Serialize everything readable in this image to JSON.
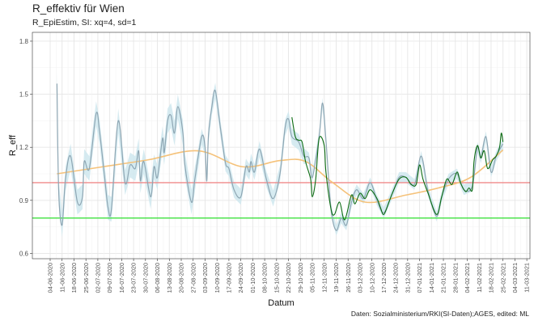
{
  "chart_data": {
    "type": "line",
    "title": "R_effektiv für Wien",
    "subtitle": "R_EpiEstim, SI: xq=4, sd=1",
    "xlabel": "Datum",
    "ylabel": "R_eff",
    "caption": "Daten: Sozialministerium/RKI(SI-Daten);AGES, edited: ML",
    "ylim": [
      0.57,
      1.85
    ],
    "yticks": [
      "0.6",
      "0.9",
      "1.2",
      "1.5",
      "1.8"
    ],
    "xticks": [
      "04-06-2020",
      "11-06-2020",
      "18-06-2020",
      "25-06-2020",
      "02-07-2020",
      "09-07-2020",
      "16-07-2020",
      "23-07-2020",
      "30-07-2020",
      "06-08-2020",
      "13-08-2020",
      "20-08-2020",
      "27-08-2020",
      "03-09-2020",
      "10-09-2020",
      "17-09-2020",
      "24-09-2020",
      "01-10-2020",
      "08-10-2020",
      "15-10-2020",
      "22-10-2020",
      "29-10-2020",
      "05-11-2020",
      "12-11-2020",
      "19-11-2020",
      "26-11-2020",
      "03-12-2020",
      "10-12-2020",
      "17-12-2020",
      "24-12-2020",
      "31-12-2020",
      "07-01-2021",
      "14-01-2021",
      "21-01-2021",
      "28-01-2021",
      "04-02-2021",
      "11-02-2021",
      "18-02-2021",
      "25-02-2021",
      "04-03-2021",
      "11-03-2021"
    ],
    "grid": true,
    "reference_lines": [
      {
        "y": 1.0,
        "color": "#f08a8a"
      },
      {
        "y": 0.8,
        "color": "#3fe23f"
      }
    ],
    "colors": {
      "grey_series": "#8ea6b3",
      "ribbon": "#cfe7ef",
      "green_series": "#0b6b12",
      "smooth": "#f5c27a"
    },
    "ci_band": [
      {
        "from": "2020-06-04",
        "to": "2020-08-31",
        "halfwidth": 0.07
      },
      {
        "from": "2020-09-01",
        "to": "2020-10-31",
        "halfwidth": 0.045
      },
      {
        "from": "2020-11-01",
        "to": "2021-03-11",
        "halfwidth": 0.03
      }
    ],
    "series": [
      {
        "points": [
          [
            "2020-06-08",
            1.56
          ],
          [
            "2020-06-09",
            0.95
          ],
          [
            "2020-06-11",
            0.76
          ],
          [
            "2020-06-13",
            1.02
          ],
          [
            "2020-06-16",
            1.15
          ],
          [
            "2020-06-20",
            0.89
          ],
          [
            "2020-06-23",
            0.92
          ],
          [
            "2020-06-24",
            1.12
          ],
          [
            "2020-06-27",
            1.08
          ],
          [
            "2020-07-01",
            1.39
          ],
          [
            "2020-07-03",
            1.29
          ],
          [
            "2020-07-06",
            1.03
          ],
          [
            "2020-07-08",
            0.86
          ],
          [
            "2020-07-10",
            0.85
          ],
          [
            "2020-07-14",
            1.35
          ],
          [
            "2020-07-18",
            1.0
          ],
          [
            "2020-07-21",
            1.1
          ],
          [
            "2020-07-24",
            1.08
          ],
          [
            "2020-07-26",
            1.18
          ],
          [
            "2020-07-27",
            1.01
          ],
          [
            "2020-07-29",
            1.12
          ],
          [
            "2020-08-02",
            0.92
          ],
          [
            "2020-08-04",
            1.09
          ],
          [
            "2020-08-06",
            1.03
          ],
          [
            "2020-08-09",
            1.25
          ],
          [
            "2020-08-10",
            1.17
          ],
          [
            "2020-08-12",
            1.35
          ],
          [
            "2020-08-14",
            1.38
          ],
          [
            "2020-08-16",
            1.28
          ],
          [
            "2020-08-18",
            1.43
          ],
          [
            "2020-08-21",
            1.28
          ],
          [
            "2020-08-22",
            1.11
          ],
          [
            "2020-08-26",
            0.89
          ],
          [
            "2020-08-28",
            1.02
          ],
          [
            "2020-09-01",
            1.26
          ],
          [
            "2020-09-03",
            1.2
          ],
          [
            "2020-09-04",
            1.01
          ],
          [
            "2020-09-05",
            1.27
          ],
          [
            "2020-09-07",
            1.43
          ],
          [
            "2020-09-09",
            1.52
          ],
          [
            "2020-09-12",
            1.31
          ],
          [
            "2020-09-15",
            1.11
          ],
          [
            "2020-09-17",
            1.08
          ],
          [
            "2020-09-20",
            0.96
          ],
          [
            "2020-09-24",
            0.92
          ],
          [
            "2020-09-27",
            1.09
          ],
          [
            "2020-09-29",
            1.06
          ],
          [
            "2020-09-30",
            1.12
          ],
          [
            "2020-10-02",
            1.06
          ],
          [
            "2020-10-05",
            1.19
          ],
          [
            "2020-10-09",
            1.02
          ],
          [
            "2020-10-13",
            0.91
          ],
          [
            "2020-10-17",
            1.05
          ],
          [
            "2020-10-20",
            1.31
          ],
          [
            "2020-10-22",
            1.36
          ],
          [
            "2020-10-24",
            1.26
          ],
          [
            "2020-10-28",
            1.23
          ],
          [
            "2020-10-31",
            1.15
          ],
          [
            "2020-11-03",
            1.14
          ],
          [
            "2020-11-05",
            1.03
          ],
          [
            "2020-11-09",
            1.26
          ],
          [
            "2020-11-11",
            1.45
          ],
          [
            "2020-11-13",
            1.24
          ],
          [
            "2020-11-16",
            0.85
          ],
          [
            "2020-11-19",
            0.73
          ],
          [
            "2020-11-22",
            0.8
          ],
          [
            "2020-11-25",
            0.76
          ],
          [
            "2020-11-28",
            0.89
          ],
          [
            "2020-12-01",
            0.96
          ],
          [
            "2020-12-05",
            0.91
          ],
          [
            "2020-12-09",
            1.0
          ],
          [
            "2020-12-13",
            0.9
          ],
          [
            "2020-12-17",
            0.83
          ],
          [
            "2020-12-22",
            0.94
          ],
          [
            "2020-12-26",
            1.03
          ],
          [
            "2020-12-30",
            1.03
          ],
          [
            "2021-01-04",
            0.99
          ],
          [
            "2021-01-08",
            1.15
          ],
          [
            "2021-01-12",
            0.95
          ],
          [
            "2021-01-17",
            0.81
          ],
          [
            "2021-01-20",
            0.92
          ],
          [
            "2021-01-24",
            1.02
          ],
          [
            "2021-01-29",
            1.05
          ],
          [
            "2021-02-02",
            0.96
          ],
          [
            "2021-02-07",
            0.98
          ],
          [
            "2021-02-10",
            1.2
          ],
          [
            "2021-02-12",
            1.14
          ],
          [
            "2021-02-15",
            1.26
          ],
          [
            "2021-02-18",
            1.06
          ],
          [
            "2021-02-21",
            1.15
          ],
          [
            "2021-02-25",
            1.22
          ]
        ]
      },
      {
        "points": [
          [
            "2020-10-24",
            1.37
          ],
          [
            "2020-10-26",
            1.26
          ],
          [
            "2020-10-28",
            1.24
          ],
          [
            "2020-10-30",
            1.23
          ],
          [
            "2020-11-01",
            1.12
          ],
          [
            "2020-11-04",
            1.02
          ],
          [
            "2020-11-05",
            0.92
          ],
          [
            "2020-11-07",
            1.02
          ],
          [
            "2020-11-09",
            1.25
          ],
          [
            "2020-11-12",
            1.21
          ],
          [
            "2020-11-13",
            1.06
          ],
          [
            "2020-11-16",
            0.85
          ],
          [
            "2020-11-18",
            0.82
          ],
          [
            "2020-11-21",
            0.89
          ],
          [
            "2020-11-24",
            0.79
          ],
          [
            "2020-11-28",
            0.93
          ],
          [
            "2020-11-30",
            0.88
          ],
          [
            "2020-12-03",
            0.94
          ],
          [
            "2020-12-06",
            0.91
          ],
          [
            "2020-12-09",
            0.96
          ],
          [
            "2020-12-13",
            0.91
          ],
          [
            "2020-12-15",
            0.86
          ],
          [
            "2020-12-17",
            0.82
          ],
          [
            "2020-12-20",
            0.89
          ],
          [
            "2020-12-22",
            0.94
          ],
          [
            "2020-12-26",
            1.02
          ],
          [
            "2020-12-30",
            1.03
          ],
          [
            "2021-01-02",
            0.99
          ],
          [
            "2021-01-05",
            0.99
          ],
          [
            "2021-01-07",
            1.1
          ],
          [
            "2021-01-09",
            1.02
          ],
          [
            "2021-01-12",
            0.94
          ],
          [
            "2021-01-17",
            0.82
          ],
          [
            "2021-01-20",
            0.92
          ],
          [
            "2021-01-23",
            1.02
          ],
          [
            "2021-01-26",
            0.99
          ],
          [
            "2021-01-29",
            1.06
          ],
          [
            "2021-01-31",
            1.0
          ],
          [
            "2021-02-03",
            0.95
          ],
          [
            "2021-02-05",
            0.97
          ],
          [
            "2021-02-07",
            0.96
          ],
          [
            "2021-02-08",
            1.12
          ],
          [
            "2021-02-10",
            1.21
          ],
          [
            "2021-02-12",
            1.14
          ],
          [
            "2021-02-14",
            1.18
          ],
          [
            "2021-02-16",
            1.08
          ],
          [
            "2021-02-19",
            1.13
          ],
          [
            "2021-02-21",
            1.15
          ],
          [
            "2021-02-23",
            1.2
          ],
          [
            "2021-02-24",
            1.28
          ],
          [
            "2021-02-25",
            1.23
          ]
        ]
      },
      {
        "points": [
          [
            "2020-06-08",
            1.05
          ],
          [
            "2020-07-05",
            1.09
          ],
          [
            "2020-08-01",
            1.13
          ],
          [
            "2020-08-30",
            1.18
          ],
          [
            "2020-09-25",
            1.09
          ],
          [
            "2020-10-17",
            1.125
          ],
          [
            "2020-11-01",
            1.12
          ],
          [
            "2020-11-17",
            1.0
          ],
          [
            "2020-12-06",
            0.89
          ],
          [
            "2020-12-30",
            0.93
          ],
          [
            "2021-01-18",
            0.97
          ],
          [
            "2021-02-06",
            1.03
          ],
          [
            "2021-02-25",
            1.185
          ]
        ]
      }
    ]
  }
}
